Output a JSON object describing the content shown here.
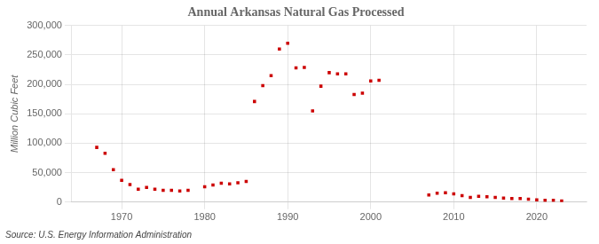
{
  "chart_data": {
    "type": "scatter",
    "title": "Annual Arkansas Natural Gas Processed",
    "y_label": "Million Cubic Feet",
    "annotations": [
      "Source: U.S. Energy Information Administration"
    ],
    "x": [
      1967,
      1968,
      1969,
      1970,
      1971,
      1972,
      1973,
      1974,
      1975,
      1976,
      1977,
      1978,
      1980,
      1981,
      1982,
      1983,
      1984,
      1985,
      1986,
      1987,
      1988,
      1989,
      1990,
      1991,
      1992,
      1993,
      1994,
      1995,
      1996,
      1997,
      1998,
      1999,
      2000,
      2001,
      2007,
      2008,
      2009,
      2010,
      2011,
      2012,
      2013,
      2014,
      2015,
      2016,
      2017,
      2018,
      2019,
      2020,
      2021,
      2022,
      2023
    ],
    "values": [
      93000,
      83000,
      55000,
      37000,
      30000,
      22000,
      25000,
      22000,
      20000,
      20000,
      19000,
      20000,
      26000,
      29000,
      32000,
      31000,
      33000,
      35000,
      171000,
      198000,
      215000,
      260000,
      270000,
      228000,
      229000,
      155000,
      197000,
      220000,
      218000,
      218000,
      183000,
      185000,
      206000,
      207000,
      12000,
      15000,
      16000,
      14000,
      11000,
      8000,
      10000,
      9000,
      8000,
      7000,
      6000,
      6000,
      5000,
      4000,
      3000,
      3000,
      2000
    ],
    "color": "#cc0000",
    "marker": "square",
    "xlim": [
      1964,
      2026
    ],
    "xticks": [
      1970,
      1980,
      1990,
      2000,
      2010,
      2020
    ],
    "ylim": [
      0,
      300000
    ],
    "yticks": [
      0,
      {
        "value": 50000,
        "label": "50,000"
      },
      {
        "value": 100000,
        "label": "100,000"
      },
      {
        "value": 150000,
        "label": "150,000"
      },
      {
        "value": 200000,
        "label": "200,000"
      },
      {
        "value": 250000,
        "label": "250,000"
      },
      {
        "value": 300000,
        "label": "300,000"
      }
    ],
    "grid": true
  }
}
